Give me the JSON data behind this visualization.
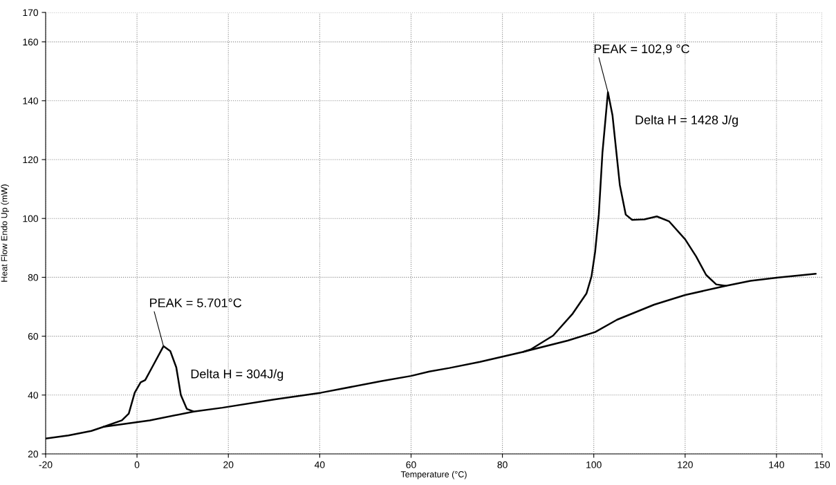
{
  "chart_data": {
    "type": "line",
    "xlabel": "Temperature (°C)",
    "ylabel": "Heat Flow Endo Up (mW)",
    "xlim": [
      -20,
      150
    ],
    "xticks": [
      -20,
      0,
      20,
      40,
      60,
      80,
      100,
      120,
      140,
      150
    ],
    "ylim": [
      20,
      170
    ],
    "yticks": [
      20,
      40,
      60,
      80,
      100,
      120,
      140,
      160,
      170
    ],
    "grid": true,
    "line_style": "solid",
    "series": [
      {
        "color": "#000000",
        "x": [
          -20,
          -15,
          -10,
          -7.3,
          -3.3,
          -1.8,
          -0.5,
          0.8,
          1.8,
          3.3,
          5.8,
          7.3,
          8.6,
          9.6,
          10.9,
          12.4,
          18.7,
          30,
          40.3,
          53.4,
          60,
          64,
          68.4,
          75.1,
          84.6,
          86.2,
          91.1,
          95.4,
          98.4,
          99.5,
          100.3,
          101.1,
          101.9,
          103.1,
          104.1,
          105.7,
          107,
          108.4,
          111.1,
          113.8,
          116.5,
          120,
          122.4,
          124.6,
          126.8,
          128.9,
          134.3,
          140.3,
          148.6
        ],
        "values": [
          25.2,
          26.3,
          27.8,
          29.2,
          31.4,
          33.7,
          40.8,
          44.3,
          45.1,
          49.4,
          56.6,
          54.9,
          49.4,
          40,
          35.3,
          34.4,
          35.7,
          38.5,
          40.8,
          44.7,
          46.5,
          48,
          49.2,
          51.3,
          54.7,
          55.5,
          60.2,
          67.7,
          74.5,
          80.3,
          88.7,
          101.3,
          122.4,
          142.9,
          135,
          111.4,
          101.3,
          99.5,
          99.7,
          100.7,
          99,
          92.9,
          87.1,
          80.8,
          77.6,
          77.1,
          78.8,
          79.9,
          81.2
        ]
      },
      {
        "color": "#000000",
        "x": [
          -7.3,
          2.8,
          12.4
        ],
        "values": [
          29.2,
          31.4,
          34.4
        ]
      },
      {
        "color": "#000000",
        "x": [
          84.6,
          94.3,
          100.3,
          105.1,
          113.2,
          120,
          128.9
        ],
        "values": [
          54.7,
          58.5,
          61.4,
          65.6,
          70.7,
          74,
          77.1
        ]
      }
    ],
    "annotations": [
      {
        "text": "PEAK = 5.701°C",
        "x": 5.8,
        "y": 56.6
      },
      "Delta H = 304J/g",
      {
        "text": "PEAK = 102,9 °C",
        "x": 103.1,
        "y": 142.9
      },
      "Delta H = 1428 J/g"
    ]
  }
}
